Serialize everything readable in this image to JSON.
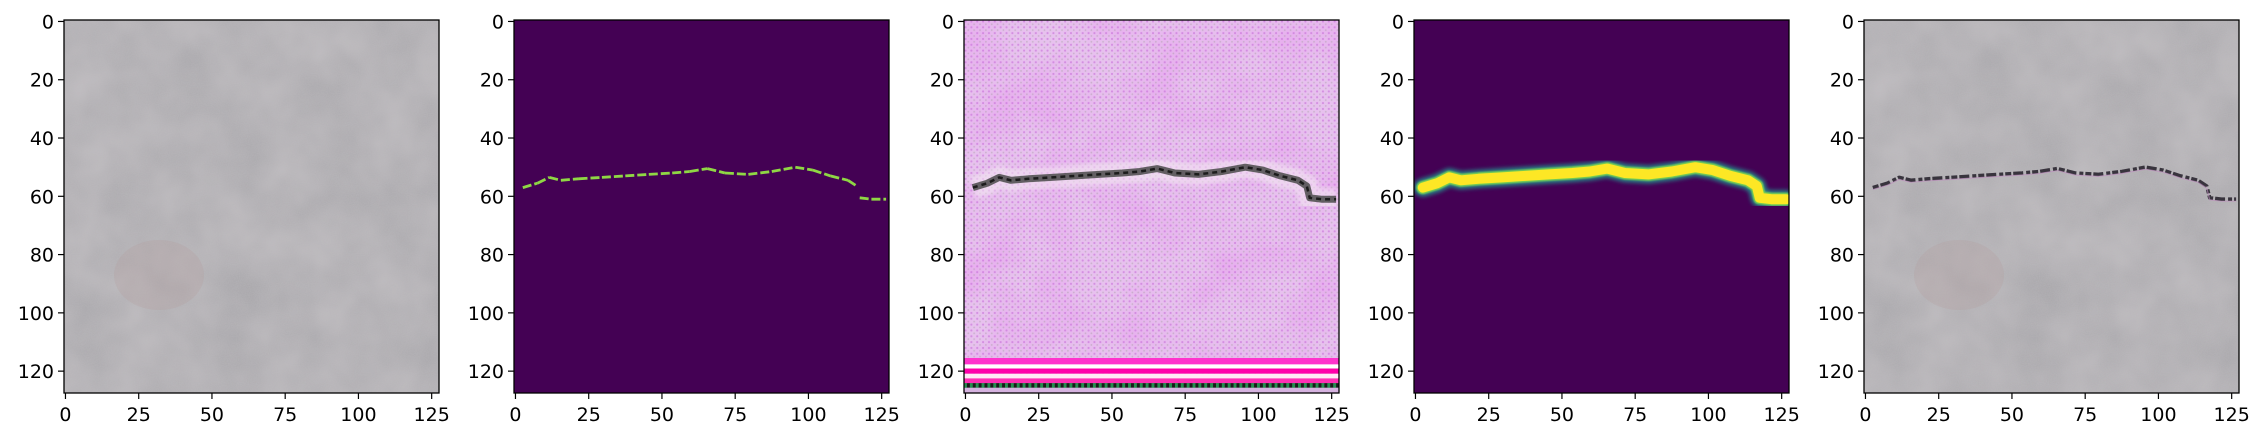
{
  "figure": {
    "panel_count": 5,
    "background": "#ffffff",
    "image_extent": [
      0,
      128
    ],
    "axis_ticks": [
      0,
      20,
      40,
      60,
      80,
      100,
      120
    ],
    "x_tick_labels": [
      "0",
      "25",
      "50",
      "75",
      "100",
      "125"
    ],
    "y_tick_labels": [
      "0",
      "20",
      "40",
      "60",
      "80",
      "100",
      "120"
    ],
    "panels": [
      {
        "kind": "photo",
        "base_color": "#a9a7ab",
        "content": "pavement photo without visible crack"
      },
      {
        "kind": "mask",
        "base_color": "#440154",
        "line_color": "#8fd744",
        "content": "thin binary crack mask"
      },
      {
        "kind": "generated",
        "base_color": "#e7c1ee",
        "accent_colors": [
          "#d86de4",
          "#5c5c5c",
          "#ff00aa",
          "#000000"
        ],
        "content": "pink generated texture with dark crack"
      },
      {
        "kind": "prediction",
        "base_color": "#440154",
        "line_color": "#fde725",
        "edge_color": "#21918c",
        "content": "thick predicted crack band"
      },
      {
        "kind": "composite",
        "base_color": "#a9a7ab",
        "line_color": "#2a2630",
        "content": "pavement photo with overlaid dark crack"
      }
    ]
  }
}
